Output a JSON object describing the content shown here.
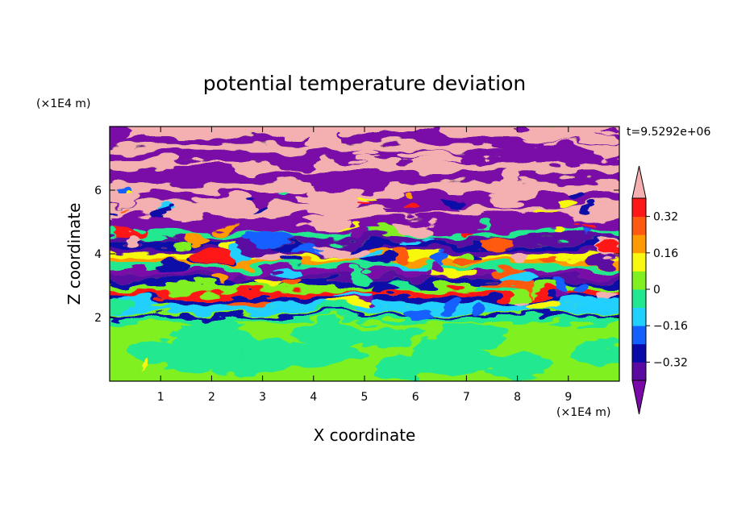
{
  "chart_data": {
    "type": "heatmap",
    "title": "potential temperature deviation",
    "xlabel": "X coordinate",
    "ylabel": "Z coordinate",
    "x_unit": "(×1E4 m)",
    "y_unit": "(×1E4 m)",
    "time_label": "t=9.5292e+06",
    "xlim": [
      0,
      10
    ],
    "ylim": [
      0,
      8
    ],
    "x_ticks": [
      "1",
      "2",
      "3",
      "4",
      "5",
      "6",
      "7",
      "8",
      "9"
    ],
    "y_ticks": [
      "2",
      "4",
      "6"
    ],
    "colorbar": {
      "labels": [
        "0.32",
        "0.16",
        "0",
        "−0.16",
        "−0.32"
      ],
      "levels": [
        -0.4,
        -0.32,
        -0.24,
        -0.16,
        -0.08,
        0,
        0.08,
        0.16,
        0.24,
        0.32,
        0.4
      ],
      "below_color": "#7a0aa8",
      "above_color": "#f4b0b0",
      "colors": [
        "#5a0aa0",
        "#0a0aa8",
        "#1460ff",
        "#20d0ff",
        "#20e890",
        "#80f020",
        "#f8f810",
        "#ff9a00",
        "#ff5a10",
        "#ff1818"
      ]
    }
  }
}
